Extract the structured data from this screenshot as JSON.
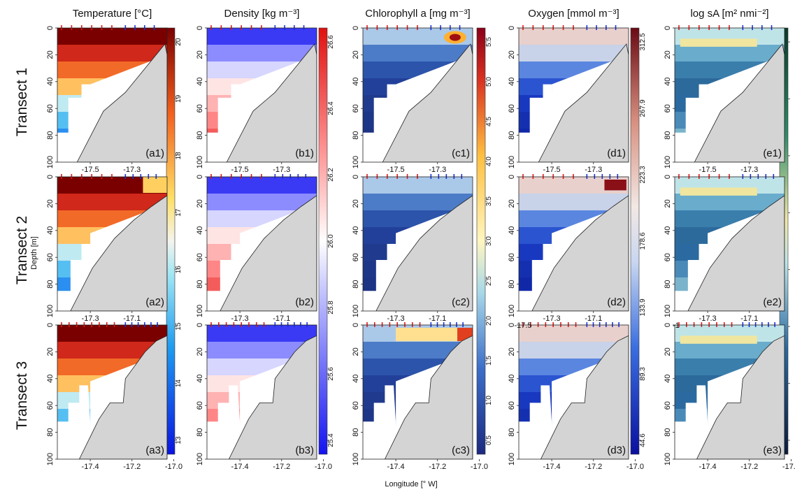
{
  "columns": [
    {
      "key": "temperature",
      "title": "Temperature [°C]",
      "colorbar_ticks": [
        "20",
        "19",
        "18",
        "17",
        "16",
        "15",
        "14",
        "13"
      ],
      "colors": {
        "cmap": "blue-cyan-yellow-red"
      }
    },
    {
      "key": "density",
      "title": "Density [kg m⁻³]",
      "colorbar_ticks": [
        "26.6",
        "26.4",
        "26.2",
        "26.0",
        "25.8",
        "25.6",
        "25.4"
      ],
      "colors": {
        "cmap": "blue-white-red"
      }
    },
    {
      "key": "chlorophyll",
      "title": "Chlorophyll a [mg m⁻³]",
      "colorbar_ticks": [
        "5.5",
        "5.0",
        "4.5",
        "4.0",
        "3.5",
        "3.0",
        "2.5",
        "2.0",
        "1.5",
        "1.0",
        "0.5"
      ],
      "colors": {
        "cmap": "blue-yellow-red"
      }
    },
    {
      "key": "oxygen",
      "title": "Oxygen [mmol m⁻³]",
      "colorbar_ticks": [
        "312.5",
        "267.9",
        "223.3",
        "178.6",
        "133.9",
        "89.3",
        "44.6"
      ],
      "colors": {
        "cmap": "blue-white-red"
      }
    },
    {
      "key": "sa",
      "title": "log sA [m² nmi⁻²]",
      "colorbar_ticks": [
        "",
        "",
        "",
        "",
        "",
        "",
        "",
        ""
      ],
      "colors": {
        "cmap": "blue-green-yellow"
      }
    }
  ],
  "rows": [
    {
      "label": "Transect 1",
      "panels": [
        "(a1)",
        "(b1)",
        "(c1)",
        "(d1)",
        "(e1)"
      ],
      "lon_ticks": [
        "-17.5",
        "-17.3"
      ]
    },
    {
      "label": "Transect 2",
      "panels": [
        "(a2)",
        "(b2)",
        "(c2)",
        "(d2)",
        "(e2)"
      ],
      "lon_ticks": [
        "-17.3",
        "-17.1"
      ]
    },
    {
      "label": "Transect 3",
      "panels": [
        "(a3)",
        "(b3)",
        "(c3)",
        "(d3)",
        "(e3)"
      ],
      "lon_ticks": [
        "-17.4",
        "-17.2",
        "-17.0"
      ]
    }
  ],
  "depth_ticks": [
    "0",
    "20",
    "40",
    "60",
    "80",
    "100"
  ],
  "depth_label": "Depth [m]",
  "xlabel": "Longitude [° W]",
  "edge_ticks": {
    "d2": "-17.5",
    "e2": "-1"
  },
  "chart_data": [
    {
      "type": "heatmap",
      "title": "Temperature [°C]",
      "ylabel": "Depth [m]",
      "xlabel": "Longitude [° W]",
      "ylim": [
        100,
        0
      ],
      "colorbar": [
        13,
        20.5
      ]
    },
    {
      "type": "heatmap",
      "title": "Density [kg m⁻³]",
      "ylabel": "Depth [m]",
      "xlabel": "Longitude [° W]",
      "ylim": [
        100,
        0
      ],
      "colorbar": [
        25.3,
        26.7
      ]
    },
    {
      "type": "heatmap",
      "title": "Chlorophyll a [mg m⁻³]",
      "ylabel": "Depth [m]",
      "xlabel": "Longitude [° W]",
      "ylim": [
        100,
        0
      ],
      "colorbar": [
        0,
        5.8
      ]
    },
    {
      "type": "heatmap",
      "title": "Oxygen [mmol m⁻³]",
      "ylabel": "Depth [m]",
      "xlabel": "Longitude [° W]",
      "ylim": [
        100,
        0
      ],
      "colorbar": [
        44.6,
        312.5
      ]
    },
    {
      "type": "heatmap",
      "title": "log sA [m² nmi⁻²]",
      "ylabel": "Depth [m]",
      "xlabel": "Longitude [° W]",
      "ylim": [
        100,
        0
      ]
    }
  ]
}
